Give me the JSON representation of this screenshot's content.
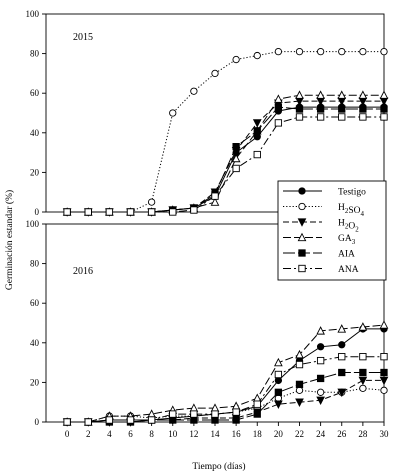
{
  "chart_data": {
    "type": "line",
    "xlabel": "Tiempo (días)",
    "ylabel": "Germinación estandar (%)",
    "x": [
      0,
      2,
      4,
      6,
      8,
      10,
      12,
      14,
      16,
      18,
      20,
      22,
      24,
      26,
      28,
      30
    ],
    "xlim": [
      -2,
      30
    ],
    "ylim": [
      0,
      100
    ],
    "yticks": [
      0,
      20,
      40,
      60,
      80,
      100
    ],
    "legend_placement": "right",
    "legend": [
      {
        "name": "Testigo",
        "key": "testigo"
      },
      {
        "name": "H2SO4",
        "key": "h2so4",
        "base": "H",
        "sub1": "2",
        "mid": "SO",
        "sub2": "4"
      },
      {
        "name": "H2O2",
        "key": "h2o2",
        "base": "H",
        "sub1": "2",
        "mid": "O",
        "sub2": "2"
      },
      {
        "name": "GA3",
        "key": "ga3",
        "base": "GA",
        "sub1": "3",
        "mid": "",
        "sub2": ""
      },
      {
        "name": "AIA",
        "key": "aia"
      },
      {
        "name": "ANA",
        "key": "ana"
      }
    ],
    "panels": [
      {
        "label": "2015",
        "series": [
          {
            "key": "testigo",
            "values": [
              0,
              0,
              0,
              0,
              0,
              1,
              2,
              8,
              30,
              38,
              51,
              53,
              53,
              53,
              53,
              53
            ]
          },
          {
            "key": "h2so4",
            "values": [
              0,
              0,
              0,
              0,
              5,
              50,
              61,
              70,
              77,
              79,
              81,
              81,
              81,
              81,
              81,
              81
            ]
          },
          {
            "key": "h2o2",
            "values": [
              0,
              0,
              0,
              0,
              0,
              1,
              2,
              10,
              31,
              45,
              55,
              56,
              56,
              56,
              56,
              56
            ]
          },
          {
            "key": "ga3",
            "values": [
              0,
              0,
              0,
              0,
              0,
              1,
              2,
              5,
              27,
              41,
              57,
              59,
              59,
              59,
              59,
              59
            ]
          },
          {
            "key": "aia",
            "values": [
              0,
              0,
              0,
              0,
              0,
              1,
              2,
              9,
              33,
              41,
              53,
              52,
              52,
              52,
              52,
              52
            ]
          },
          {
            "key": "ana",
            "values": [
              0,
              0,
              0,
              0,
              0,
              0,
              1,
              8,
              22,
              29,
              45,
              48,
              48,
              48,
              48,
              48
            ]
          }
        ]
      },
      {
        "label": "2016",
        "series": [
          {
            "key": "testigo",
            "values": [
              0,
              0,
              1,
              1,
              1,
              2,
              3,
              4,
              5,
              8,
              21,
              31,
              38,
              39,
              47,
              47
            ]
          },
          {
            "key": "h2so4",
            "values": [
              0,
              0,
              3,
              3,
              2,
              3,
              3,
              4,
              5,
              7,
              12,
              16,
              15,
              15,
              17,
              16
            ]
          },
          {
            "key": "h2o2",
            "values": [
              0,
              0,
              0,
              0,
              1,
              1,
              2,
              2,
              2,
              5,
              9,
              10,
              11,
              15,
              21,
              21
            ]
          },
          {
            "key": "ga3",
            "values": [
              0,
              0,
              3,
              3,
              4,
              6,
              7,
              7,
              8,
              12,
              30,
              34,
              46,
              47,
              48,
              49
            ]
          },
          {
            "key": "aia",
            "values": [
              0,
              0,
              0,
              0,
              1,
              1,
              1,
              1,
              1,
              4,
              15,
              19,
              22,
              25,
              25,
              25
            ]
          },
          {
            "key": "ana",
            "values": [
              0,
              0,
              1,
              1,
              1,
              4,
              4,
              4,
              5,
              9,
              24,
              29,
              31,
              33,
              33,
              33
            ]
          }
        ]
      }
    ]
  }
}
